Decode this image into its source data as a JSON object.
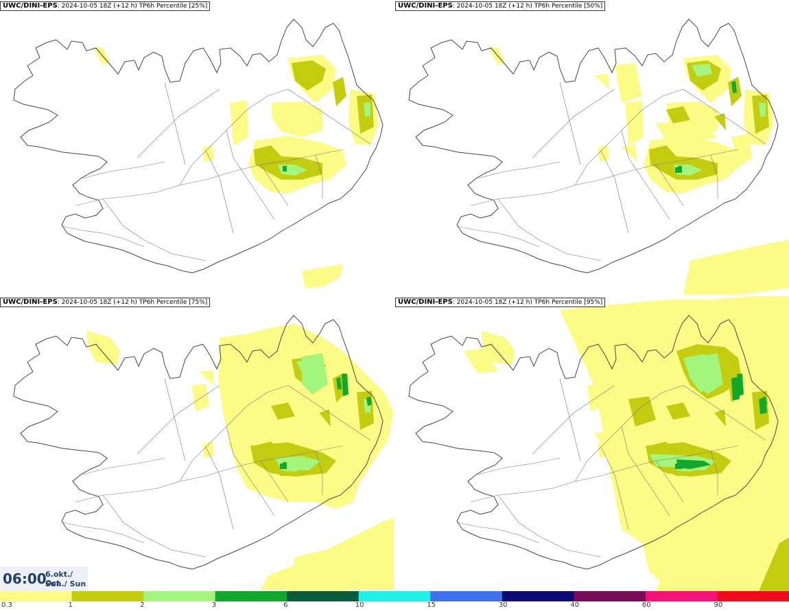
{
  "panels": [
    {
      "model": "UWC/DINI-EPS",
      "run": ": 2024-10-05 18Z (+12 h) ",
      "field": "TP6h Percentile [25%]",
      "level": 0
    },
    {
      "model": "UWC/DINI-EPS",
      "run": ": 2024-10-05 18Z (+12 h) ",
      "field": "TP6h Percentile [50%]",
      "level": 1
    },
    {
      "model": "UWC/DINI-EPS",
      "run": ": 2024-10-05 18Z (+12 h) ",
      "field": "TP6h Percentile [75%]",
      "level": 2
    },
    {
      "model": "UWC/DINI-EPS",
      "run": ": 2024-10-05 18Z (+12 h) ",
      "field": "TP6h Percentile [95%]",
      "level": 3
    }
  ],
  "valid_time": {
    "time": "06:00",
    "date_local": "6.okt./ Oct",
    "day": "Sun./ Sun"
  },
  "legend": {
    "thresholds": [
      "0.3",
      "1",
      "2",
      "3",
      "6",
      "10",
      "15",
      "30",
      "40",
      "60",
      "90"
    ],
    "colors": [
      "#fbfb86",
      "#c4cc10",
      "#a4f57c",
      "#13a82c",
      "#0b5c3e",
      "#1ff0ea",
      "#3e72ec",
      "#0c0c73",
      "#7a0a5a",
      "#f5137a",
      "#f00a1e"
    ]
  },
  "palette": {
    "yellow": "#fbfb86",
    "olive": "#c4cc10",
    "light_green": "#a4f57c",
    "green": "#13a82c",
    "coast": "#444444"
  }
}
